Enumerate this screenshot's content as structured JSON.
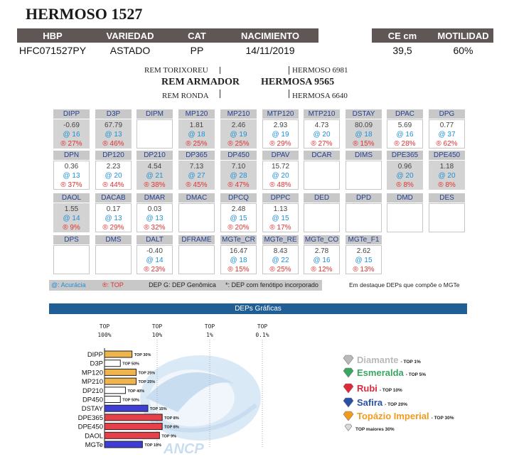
{
  "title": "HERMOSO 1527",
  "header": {
    "hbp": "HBP",
    "variedade": "VARIEDAD",
    "cat": "CAT",
    "nacimiento": "NACIMIENTO",
    "ce": "CE cm",
    "motilidad": "MOTILIDAD"
  },
  "animal": {
    "hbp": "HFC071527PY",
    "variedade": "ASTADO",
    "cat": "PP",
    "nacimiento": "14/11/2019",
    "ce": "39,5",
    "motilidad": "60%"
  },
  "pedigree": {
    "sire": "REM ARMADOR",
    "sire_sire": "REM TORIXOREU",
    "sire_dam": "REM RONDA",
    "dam": "HERMOSA 9565",
    "dam_sire": "HERMOSO 6981",
    "dam_dam": "HERMOSA 6640"
  },
  "deps": [
    [
      {
        "name": "DIPP",
        "value": "-0.69",
        "acc": "@ 16",
        "top": "® 27%",
        "hl": true
      },
      {
        "name": "D3P",
        "value": "67.79",
        "acc": "@ 13",
        "top": "® 46%",
        "hl": true
      },
      {
        "name": "DIPM",
        "value": "",
        "acc": "",
        "top": "",
        "hl": false
      },
      {
        "name": "MP120",
        "value": "1.81",
        "acc": "@ 18",
        "top": "® 25%",
        "hl": true
      },
      {
        "name": "MP210",
        "value": "2.46",
        "acc": "@ 19",
        "top": "® 25%",
        "hl": true
      },
      {
        "name": "MTP120",
        "value": "2.93",
        "acc": "@ 19",
        "top": "® 29%",
        "hl": false
      },
      {
        "name": "MTP210",
        "value": "4.73",
        "acc": "@ 20",
        "top": "® 27%",
        "hl": false
      },
      {
        "name": "DSTAY",
        "value": "80.09",
        "acc": "@ 18",
        "top": "® 15%",
        "hl": true
      },
      {
        "name": "DPAC",
        "value": "5.69",
        "acc": "@ 16",
        "top": "® 28%",
        "hl": false
      },
      {
        "name": "DPG",
        "value": "0.77",
        "acc": "@ 37",
        "top": "® 62%",
        "hl": false
      }
    ],
    [
      {
        "name": "DPN",
        "value": "0.36",
        "acc": "@ 13",
        "top": "® 37%",
        "hl": false
      },
      {
        "name": "DP120",
        "value": "2.23",
        "acc": "@ 20",
        "top": "® 44%",
        "hl": false
      },
      {
        "name": "DP210",
        "value": "4.54",
        "acc": "@ 21",
        "top": "® 38%",
        "hl": true
      },
      {
        "name": "DP365",
        "value": "7.13",
        "acc": "@ 27",
        "top": "® 45%",
        "hl": true
      },
      {
        "name": "DP450",
        "value": "7.10",
        "acc": "@ 28",
        "top": "® 47%",
        "hl": true
      },
      {
        "name": "DPAV",
        "value": "15.72",
        "acc": "@ 20",
        "top": "® 48%",
        "hl": false
      },
      {
        "name": "DCAR",
        "value": "",
        "acc": "",
        "top": "",
        "hl": false
      },
      {
        "name": "DIMS",
        "value": "",
        "acc": "",
        "top": "",
        "hl": false
      },
      {
        "name": "DPE365",
        "value": "0.96",
        "acc": "@ 20",
        "top": "® 8%",
        "hl": true
      },
      {
        "name": "DPE450",
        "value": "1.18",
        "acc": "@ 20",
        "top": "® 8%",
        "hl": true
      }
    ],
    [
      {
        "name": "DAOL",
        "value": "1.55",
        "acc": "@ 14",
        "top": "® 9%",
        "hl": true
      },
      {
        "name": "DACAB",
        "value": "0.17",
        "acc": "@ 13",
        "top": "® 29%",
        "hl": false
      },
      {
        "name": "DMAR",
        "value": "0.03",
        "acc": "@ 13",
        "top": "® 32%",
        "hl": false
      },
      {
        "name": "DMAC",
        "value": "",
        "acc": "",
        "top": "",
        "hl": false
      },
      {
        "name": "DPCQ",
        "value": "2.48",
        "acc": "@ 15",
        "top": "® 20%",
        "hl": false
      },
      {
        "name": "DPPC",
        "value": "1.13",
        "acc": "@ 15",
        "top": "® 17%",
        "hl": false
      },
      {
        "name": "DED",
        "value": "",
        "acc": "",
        "top": "",
        "hl": false
      },
      {
        "name": "DPD",
        "value": "",
        "acc": "",
        "top": "",
        "hl": false
      },
      {
        "name": "DMD",
        "value": "",
        "acc": "",
        "top": "",
        "hl": false
      },
      {
        "name": "DES",
        "value": "",
        "acc": "",
        "top": "",
        "hl": false
      }
    ],
    [
      {
        "name": "DPS",
        "value": "",
        "acc": "",
        "top": "",
        "hl": false
      },
      {
        "name": "DMS",
        "value": "",
        "acc": "",
        "top": "",
        "hl": false
      },
      {
        "name": "DALT",
        "value": "-0.40",
        "acc": "@ 14",
        "top": "® 23%",
        "hl": false
      },
      {
        "name": "DFRAME",
        "value": "",
        "acc": "",
        "top": "",
        "hl": false
      },
      {
        "name": "MGTe_CR",
        "value": "16.47",
        "acc": "@ 18",
        "top": "® 15%",
        "hl": false
      },
      {
        "name": "MGTe_RE",
        "value": "8.43",
        "acc": "@ 22",
        "top": "® 25%",
        "hl": false
      },
      {
        "name": "MGTe_CO",
        "value": "2.78",
        "acc": "@ 16",
        "top": "® 12%",
        "hl": false
      },
      {
        "name": "MGTe_F1",
        "value": "2.62",
        "acc": "@ 15",
        "top": "® 13%",
        "hl": false
      }
    ]
  ],
  "legend": {
    "acuracia": "@: Acurácia",
    "top": "®: TOP",
    "dep_g": "DEP G: DEP Genômica",
    "fenotipo": "*: DEP com fenótipo incorporado",
    "destaque": "Em destaque DEPs que compõe o MGTe"
  },
  "graph_title": "DEPs Gráficas",
  "chart_data": {
    "type": "bar",
    "axis_labels": [
      {
        "top": "TOP",
        "value": "100%",
        "pct": 100
      },
      {
        "top": "TOP",
        "value": "10%",
        "pct": 10
      },
      {
        "top": "TOP",
        "value": "1%",
        "pct": 1
      },
      {
        "top": "TOP",
        "value": "0.1%",
        "pct": 0.1
      }
    ],
    "categories": [
      "DIPP",
      "D3P",
      "MP120",
      "MP210",
      "DP210",
      "DP450",
      "DSTAY",
      "DPE365",
      "DPE450",
      "DAOL",
      "MGTe"
    ],
    "values": [
      30,
      50,
      25,
      25,
      40,
      50,
      15,
      8,
      8,
      9,
      19
    ],
    "labels": [
      "TOP 30%",
      "TOP 50%",
      "TOP 25%",
      "TOP 25%",
      "TOP 40%",
      "TOP 50%",
      "TOP 15%",
      "TOP 8%",
      "TOP 8%",
      "TOP 9%",
      "TOP 19%"
    ],
    "colors": [
      "#f0b44c",
      "#ffffff",
      "#f0b44c",
      "#f0b44c",
      "#ffffff",
      "#ffffff",
      "#3e3ed6",
      "#e6404b",
      "#e6404b",
      "#e6404b",
      "#3e3ed6"
    ],
    "scale": "log"
  },
  "gems": [
    {
      "name": "Diamante",
      "top": "- TOP 1%",
      "color": "#b9b9b9"
    },
    {
      "name": "Esmeralda",
      "top": "- TOP 5%",
      "color": "#3aa561"
    },
    {
      "name": "Rubi",
      "top": "- TOP 10%",
      "color": "#e0283a"
    },
    {
      "name": "Safira",
      "top": "- TOP 20%",
      "color": "#2a4fa6"
    },
    {
      "name": "Topázio Imperial",
      "top": "- TOP 30%",
      "color": "#f29a1d"
    },
    {
      "name": "",
      "top": "TOP maiores 30%",
      "color": "#d9d9d9"
    }
  ]
}
